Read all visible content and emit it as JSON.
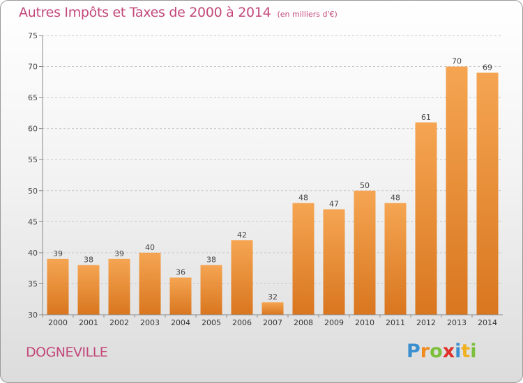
{
  "title": "Autres Impôts et Taxes de 2000 à 2014",
  "subtitle": "(en milliers d'€)",
  "commune": "DOGNEVILLE",
  "logo": {
    "letters": [
      "P",
      "r",
      "o",
      "x",
      "i",
      "t",
      "i"
    ],
    "colors": [
      "#3a8fd0",
      "#f08a1c",
      "#7cbf3a",
      "#e0302a",
      "#3a8fd0",
      "#f0b020",
      "#7cbf3a"
    ]
  },
  "chart_data": {
    "type": "bar",
    "categories": [
      "2000",
      "2001",
      "2002",
      "2003",
      "2004",
      "2005",
      "2006",
      "2007",
      "2008",
      "2009",
      "2010",
      "2011",
      "2012",
      "2013",
      "2014"
    ],
    "values": [
      39,
      38,
      39,
      40,
      36,
      38,
      42,
      32,
      48,
      47,
      50,
      48,
      61,
      70,
      69
    ],
    "ylim": [
      30,
      75
    ],
    "yticks": [
      30,
      35,
      40,
      45,
      50,
      55,
      60,
      65,
      70,
      75
    ],
    "grid": "horizontal dashed",
    "bar_color_top": "#f5a552",
    "bar_color_bottom": "#d9761f"
  }
}
